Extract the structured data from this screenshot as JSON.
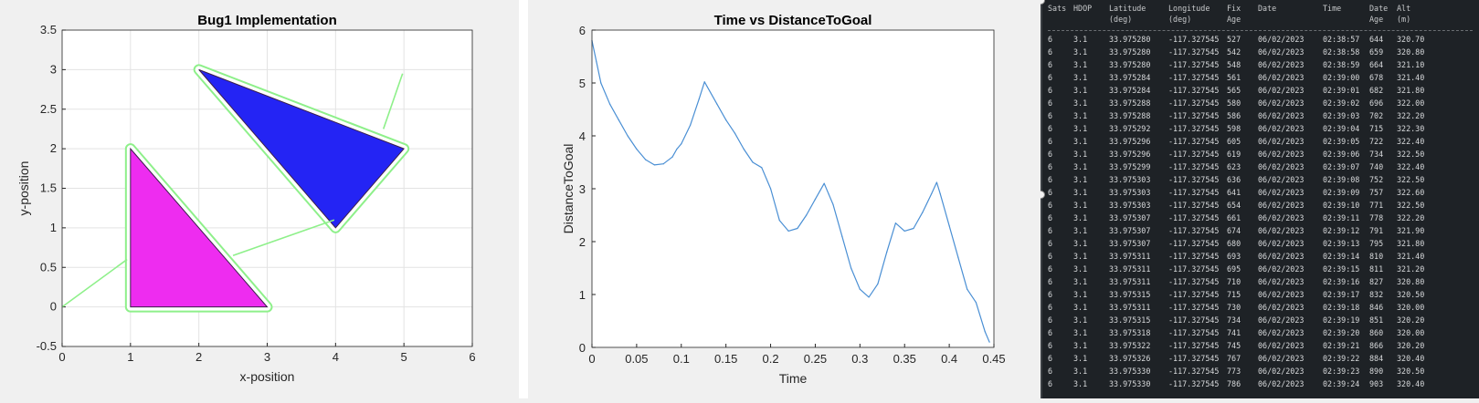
{
  "figure1": {
    "chart_data": {
      "type": "line",
      "title": "Bug1 Implementation",
      "xlabel": "x-position",
      "ylabel": "y-position",
      "xlim": [
        0,
        6
      ],
      "ylim": [
        -0.5,
        3.5
      ],
      "xticks": [
        "0",
        "1",
        "2",
        "3",
        "4",
        "5",
        "6"
      ],
      "yticks": [
        "-0.5",
        "0",
        "0.5",
        "1",
        "1.5",
        "2",
        "2.5",
        "3",
        "3.5"
      ],
      "grid": true,
      "obstacles": [
        {
          "name": "",
          "color": "#ee2cf0",
          "vertices": [
            [
              1,
              0
            ],
            [
              3,
              0
            ],
            [
              1,
              2
            ]
          ]
        },
        {
          "name": "",
          "color": "#2424f4",
          "vertices": [
            [
              2,
              3
            ],
            [
              5,
              2
            ],
            [
              4,
              1
            ]
          ]
        }
      ],
      "path_color": "#8ef08a",
      "path": [
        [
          0,
          0
        ],
        [
          0.9,
          0.55
        ],
        [
          0.9,
          2.05
        ],
        [
          1.05,
          2.1
        ],
        [
          1.1,
          2.0
        ],
        [
          2.85,
          0.1
        ],
        [
          3.0,
          -0.05
        ],
        [
          3.05,
          -0.15
        ],
        [
          2.95,
          -0.1
        ],
        [
          2.9,
          0.05
        ],
        [
          1.05,
          0.0
        ],
        [
          0.92,
          -0.05
        ],
        [
          0.9,
          0.55
        ]
      ]
    }
  },
  "figure2": {
    "chart_data": {
      "type": "line",
      "title": "Time vs DistanceToGoal",
      "xlabel": "Time",
      "ylabel": "DistanceToGoal",
      "xlim": [
        0,
        0.45
      ],
      "ylim": [
        0,
        6
      ],
      "xticks": [
        "0",
        "0.05",
        "0.1",
        "0.15",
        "0.2",
        "0.25",
        "0.3",
        "0.35",
        "0.4",
        "0.45"
      ],
      "yticks": [
        "0",
        "1",
        "2",
        "3",
        "4",
        "5",
        "6"
      ],
      "grid": false,
      "line_color": "#4a8fd4",
      "x": [
        0,
        0.005,
        0.01,
        0.02,
        0.03,
        0.04,
        0.05,
        0.06,
        0.07,
        0.08,
        0.09,
        0.095,
        0.1,
        0.11,
        0.12,
        0.126,
        0.14,
        0.15,
        0.16,
        0.17,
        0.18,
        0.19,
        0.2,
        0.21,
        0.22,
        0.23,
        0.24,
        0.25,
        0.26,
        0.265,
        0.27,
        0.28,
        0.29,
        0.3,
        0.31,
        0.32,
        0.33,
        0.34,
        0.35,
        0.36,
        0.37,
        0.38,
        0.386,
        0.39,
        0.4,
        0.41,
        0.42,
        0.43,
        0.44,
        0.445
      ],
      "y": [
        5.8,
        5.4,
        5.0,
        4.6,
        4.3,
        4.0,
        3.75,
        3.55,
        3.45,
        3.47,
        3.6,
        3.75,
        3.85,
        4.2,
        4.7,
        5.02,
        4.6,
        4.3,
        4.05,
        3.75,
        3.5,
        3.4,
        3.0,
        2.4,
        2.2,
        2.25,
        2.5,
        2.8,
        3.1,
        2.9,
        2.7,
        2.1,
        1.5,
        1.1,
        0.95,
        1.2,
        1.8,
        2.35,
        2.2,
        2.25,
        2.55,
        2.9,
        3.12,
        2.9,
        2.3,
        1.7,
        1.1,
        0.85,
        0.3,
        0.1
      ]
    }
  },
  "terminal": {
    "headers": {
      "line1": [
        "Sats",
        "HDOP",
        "Latitude",
        "Longitude",
        "Fix",
        "Date",
        "Time",
        "Date",
        "Alt"
      ],
      "line2": [
        "",
        "",
        "(deg)",
        "(deg)",
        "Age",
        "",
        "",
        "Age",
        "(m)"
      ]
    },
    "rows": [
      [
        "6",
        "3.1",
        "33.975280",
        "-117.327545",
        "527",
        "06/02/2023",
        "02:38:57",
        "644",
        "320.70"
      ],
      [
        "6",
        "3.1",
        "33.975280",
        "-117.327545",
        "542",
        "06/02/2023",
        "02:38:58",
        "659",
        "320.80"
      ],
      [
        "6",
        "3.1",
        "33.975280",
        "-117.327545",
        "548",
        "06/02/2023",
        "02:38:59",
        "664",
        "321.10"
      ],
      [
        "6",
        "3.1",
        "33.975284",
        "-117.327545",
        "561",
        "06/02/2023",
        "02:39:00",
        "678",
        "321.40"
      ],
      [
        "6",
        "3.1",
        "33.975284",
        "-117.327545",
        "565",
        "06/02/2023",
        "02:39:01",
        "682",
        "321.80"
      ],
      [
        "6",
        "3.1",
        "33.975288",
        "-117.327545",
        "580",
        "06/02/2023",
        "02:39:02",
        "696",
        "322.00"
      ],
      [
        "6",
        "3.1",
        "33.975288",
        "-117.327545",
        "586",
        "06/02/2023",
        "02:39:03",
        "702",
        "322.20"
      ],
      [
        "6",
        "3.1",
        "33.975292",
        "-117.327545",
        "598",
        "06/02/2023",
        "02:39:04",
        "715",
        "322.30"
      ],
      [
        "6",
        "3.1",
        "33.975296",
        "-117.327545",
        "605",
        "06/02/2023",
        "02:39:05",
        "722",
        "322.40"
      ],
      [
        "6",
        "3.1",
        "33.975296",
        "-117.327545",
        "619",
        "06/02/2023",
        "02:39:06",
        "734",
        "322.50"
      ],
      [
        "6",
        "3.1",
        "33.975299",
        "-117.327545",
        "623",
        "06/02/2023",
        "02:39:07",
        "740",
        "322.40"
      ],
      [
        "6",
        "3.1",
        "33.975303",
        "-117.327545",
        "636",
        "06/02/2023",
        "02:39:08",
        "752",
        "322.50"
      ],
      [
        "6",
        "3.1",
        "33.975303",
        "-117.327545",
        "641",
        "06/02/2023",
        "02:39:09",
        "757",
        "322.60"
      ],
      [
        "6",
        "3.1",
        "33.975303",
        "-117.327545",
        "654",
        "06/02/2023",
        "02:39:10",
        "771",
        "322.50"
      ],
      [
        "6",
        "3.1",
        "33.975307",
        "-117.327545",
        "661",
        "06/02/2023",
        "02:39:11",
        "778",
        "322.20"
      ],
      [
        "6",
        "3.1",
        "33.975307",
        "-117.327545",
        "674",
        "06/02/2023",
        "02:39:12",
        "791",
        "321.90"
      ],
      [
        "6",
        "3.1",
        "33.975307",
        "-117.327545",
        "680",
        "06/02/2023",
        "02:39:13",
        "795",
        "321.80"
      ],
      [
        "6",
        "3.1",
        "33.975311",
        "-117.327545",
        "693",
        "06/02/2023",
        "02:39:14",
        "810",
        "321.40"
      ],
      [
        "6",
        "3.1",
        "33.975311",
        "-117.327545",
        "695",
        "06/02/2023",
        "02:39:15",
        "811",
        "321.20"
      ],
      [
        "6",
        "3.1",
        "33.975311",
        "-117.327545",
        "710",
        "06/02/2023",
        "02:39:16",
        "827",
        "320.80"
      ],
      [
        "6",
        "3.1",
        "33.975315",
        "-117.327545",
        "715",
        "06/02/2023",
        "02:39:17",
        "832",
        "320.50"
      ],
      [
        "6",
        "3.1",
        "33.975311",
        "-117.327545",
        "730",
        "06/02/2023",
        "02:39:18",
        "846",
        "320.00"
      ],
      [
        "6",
        "3.1",
        "33.975315",
        "-117.327545",
        "734",
        "06/02/2023",
        "02:39:19",
        "851",
        "320.20"
      ],
      [
        "6",
        "3.1",
        "33.975318",
        "-117.327545",
        "741",
        "06/02/2023",
        "02:39:20",
        "860",
        "320.00"
      ],
      [
        "6",
        "3.1",
        "33.975322",
        "-117.327545",
        "745",
        "06/02/2023",
        "02:39:21",
        "866",
        "320.20"
      ],
      [
        "6",
        "3.1",
        "33.975326",
        "-117.327545",
        "767",
        "06/02/2023",
        "02:39:22",
        "884",
        "320.40"
      ],
      [
        "6",
        "3.1",
        "33.975330",
        "-117.327545",
        "773",
        "06/02/2023",
        "02:39:23",
        "890",
        "320.50"
      ],
      [
        "6",
        "3.1",
        "33.975330",
        "-117.327545",
        "786",
        "06/02/2023",
        "02:39:24",
        "903",
        "320.40"
      ]
    ]
  }
}
